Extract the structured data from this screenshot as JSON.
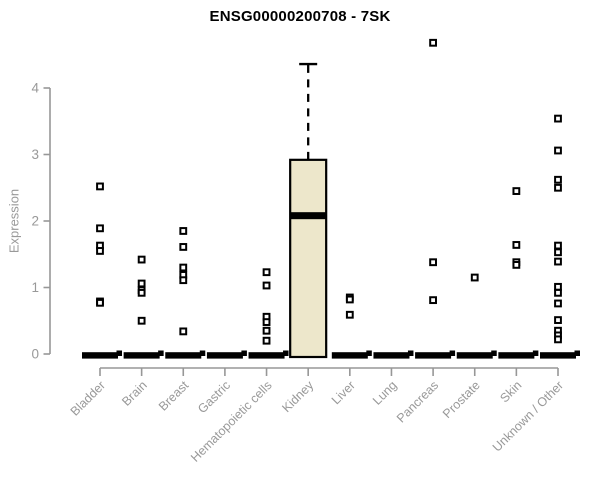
{
  "title": "ENSG00000200708 - 7SK",
  "colors": {
    "box_fill": "#ede7cb",
    "box_stroke": "#000000",
    "median": "#000000",
    "point_stroke": "#000000",
    "point_fill": "#ffffff",
    "axis": "#979797",
    "tick_label": "#999999",
    "title": "#000000",
    "background": "#ffffff"
  },
  "chart_data": {
    "type": "boxplot",
    "title": "ENSG00000200708 - 7SK",
    "xlabel": "",
    "ylabel": "Expression",
    "ylim": [
      0,
      4
    ],
    "yticks": [
      0,
      1,
      2,
      3,
      4
    ],
    "grid": false,
    "legend": "none",
    "categories": [
      "Bladder",
      "Brain",
      "Breast",
      "Gastric",
      "Hematopoietic cells",
      "Kidney",
      "Liver",
      "Lung",
      "Pancreas",
      "Prostate",
      "Skin",
      "Unknown / Other"
    ],
    "boxes": [
      {
        "category": "Bladder",
        "q1": 0,
        "median": 0,
        "q3": 0,
        "whisker_low": 0,
        "whisker_high": 0,
        "points": [
          2.52,
          1.89,
          1.63,
          1.55,
          0.79,
          0.77
        ]
      },
      {
        "category": "Brain",
        "q1": 0,
        "median": 0,
        "q3": 0,
        "whisker_low": 0,
        "whisker_high": 0,
        "points": [
          1.42,
          1.06,
          0.96,
          0.92,
          0.5
        ]
      },
      {
        "category": "Breast",
        "q1": 0,
        "median": 0,
        "q3": 0,
        "whisker_low": 0,
        "whisker_high": 0,
        "points": [
          1.85,
          1.61,
          1.3,
          1.19,
          1.11,
          0.34
        ]
      },
      {
        "category": "Gastric",
        "q1": 0,
        "median": 0,
        "q3": 0,
        "whisker_low": 0,
        "whisker_high": 0,
        "points": []
      },
      {
        "category": "Hematopoietic cells",
        "q1": 0,
        "median": 0,
        "q3": 0,
        "whisker_low": 0,
        "whisker_high": 0,
        "points": [
          1.23,
          1.03,
          0.56,
          0.48,
          0.35,
          0.2
        ]
      },
      {
        "category": "Kidney",
        "q1": 0,
        "median": 2.08,
        "q3": 2.92,
        "whisker_low": 0,
        "whisker_high": 4.36,
        "points": []
      },
      {
        "category": "Liver",
        "q1": 0,
        "median": 0,
        "q3": 0,
        "whisker_low": 0,
        "whisker_high": 0,
        "points": [
          0.85,
          0.82,
          0.59
        ]
      },
      {
        "category": "Lung",
        "q1": 0,
        "median": 0,
        "q3": 0,
        "whisker_low": 0,
        "whisker_high": 0,
        "points": []
      },
      {
        "category": "Pancreas",
        "q1": 0,
        "median": 0,
        "q3": 0,
        "whisker_low": 0,
        "whisker_high": 0,
        "points": [
          4.68,
          1.38,
          0.81
        ]
      },
      {
        "category": "Prostate",
        "q1": 0,
        "median": 0,
        "q3": 0,
        "whisker_low": 0,
        "whisker_high": 0,
        "points": [
          1.15
        ]
      },
      {
        "category": "Skin",
        "q1": 0,
        "median": 0,
        "q3": 0,
        "whisker_low": 0,
        "whisker_high": 0,
        "points": [
          2.45,
          1.64,
          1.38,
          1.34
        ]
      },
      {
        "category": "Unknown / Other",
        "q1": 0,
        "median": 0,
        "q3": 0,
        "whisker_low": 0,
        "whisker_high": 0,
        "points": [
          3.54,
          3.06,
          2.62,
          2.5,
          1.63,
          1.53,
          1.39,
          1.01,
          0.92,
          0.76,
          0.51,
          0.35,
          0.28,
          0.22
        ]
      }
    ]
  }
}
